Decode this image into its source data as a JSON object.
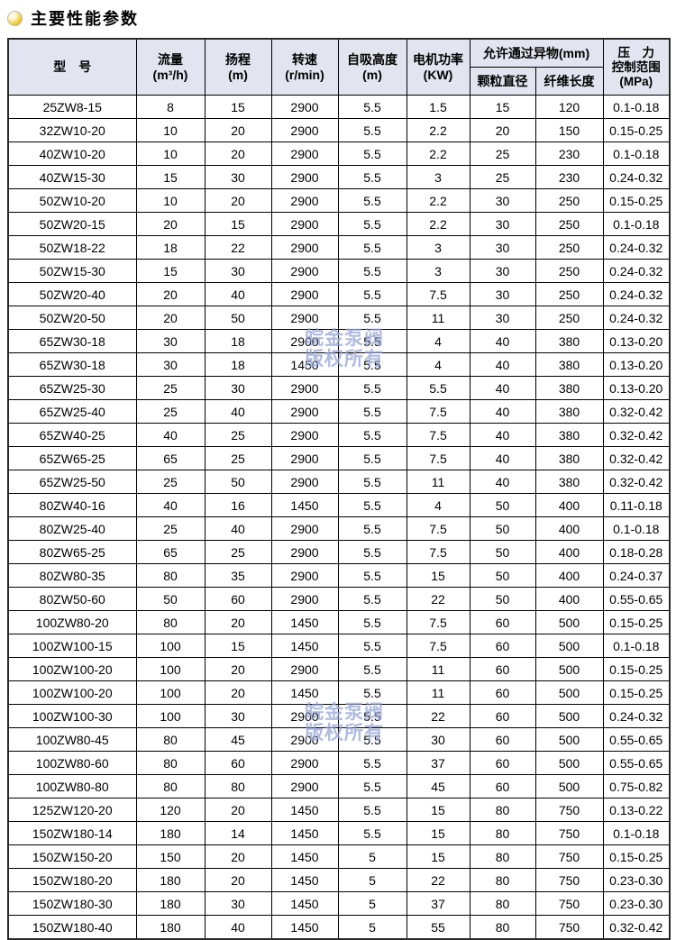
{
  "page": {
    "title": "主要性能参数"
  },
  "watermark": {
    "line1": "皖金泵阀",
    "line2": "版权所有"
  },
  "table": {
    "headers": {
      "model": "型　号",
      "flow": "流量",
      "flow_unit": "(m³/h)",
      "head": "扬程",
      "head_unit": "(m)",
      "speed": "转速",
      "speed_unit": "(r/min)",
      "suction": "自吸高度",
      "suction_unit": "(m)",
      "power": "电机功率",
      "power_unit": "(KW)",
      "foreign": "允许通过异物(mm)",
      "particle": "颗粒直径",
      "fiber": "纤维长度",
      "pressure_l1": "压　力",
      "pressure_l2": "控制范围",
      "pressure_l3": "(MPa)"
    },
    "rows": [
      [
        "25ZW8-15",
        "8",
        "15",
        "2900",
        "5.5",
        "1.5",
        "15",
        "120",
        "0.1-0.18"
      ],
      [
        "32ZW10-20",
        "10",
        "20",
        "2900",
        "5.5",
        "2.2",
        "20",
        "150",
        "0.15-0.25"
      ],
      [
        "40ZW10-20",
        "10",
        "20",
        "2900",
        "5.5",
        "2.2",
        "25",
        "230",
        "0.1-0.18"
      ],
      [
        "40ZW15-30",
        "15",
        "30",
        "2900",
        "5.5",
        "3",
        "25",
        "230",
        "0.24-0.32"
      ],
      [
        "50ZW10-20",
        "10",
        "20",
        "2900",
        "5.5",
        "2.2",
        "30",
        "250",
        "0.15-0.25"
      ],
      [
        "50ZW20-15",
        "20",
        "15",
        "2900",
        "5.5",
        "2.2",
        "30",
        "250",
        "0.1-0.18"
      ],
      [
        "50ZW18-22",
        "18",
        "22",
        "2900",
        "5.5",
        "3",
        "30",
        "250",
        "0.24-0.32"
      ],
      [
        "50ZW15-30",
        "15",
        "30",
        "2900",
        "5.5",
        "3",
        "30",
        "250",
        "0.24-0.32"
      ],
      [
        "50ZW20-40",
        "20",
        "40",
        "2900",
        "5.5",
        "7.5",
        "30",
        "250",
        "0.24-0.32"
      ],
      [
        "50ZW20-50",
        "20",
        "50",
        "2900",
        "5.5",
        "11",
        "30",
        "250",
        "0.24-0.32"
      ],
      [
        "65ZW30-18",
        "30",
        "18",
        "2900",
        "5.5",
        "4",
        "40",
        "380",
        "0.13-0.20"
      ],
      [
        "65ZW30-18",
        "30",
        "18",
        "1450",
        "5.5",
        "4",
        "40",
        "380",
        "0.13-0.20"
      ],
      [
        "65ZW25-30",
        "25",
        "30",
        "2900",
        "5.5",
        "5.5",
        "40",
        "380",
        "0.13-0.20"
      ],
      [
        "65ZW25-40",
        "25",
        "40",
        "2900",
        "5.5",
        "7.5",
        "40",
        "380",
        "0.32-0.42"
      ],
      [
        "65ZW40-25",
        "40",
        "25",
        "2900",
        "5.5",
        "7.5",
        "40",
        "380",
        "0.32-0.42"
      ],
      [
        "65ZW65-25",
        "65",
        "25",
        "2900",
        "5.5",
        "7.5",
        "40",
        "380",
        "0.32-0.42"
      ],
      [
        "65ZW25-50",
        "25",
        "50",
        "2900",
        "5.5",
        "11",
        "40",
        "380",
        "0.32-0.42"
      ],
      [
        "80ZW40-16",
        "40",
        "16",
        "1450",
        "5.5",
        "4",
        "50",
        "400",
        "0.11-0.18"
      ],
      [
        "80ZW25-40",
        "25",
        "40",
        "2900",
        "5.5",
        "7.5",
        "50",
        "400",
        "0.1-0.18"
      ],
      [
        "80ZW65-25",
        "65",
        "25",
        "2900",
        "5.5",
        "7.5",
        "50",
        "400",
        "0.18-0.28"
      ],
      [
        "80ZW80-35",
        "80",
        "35",
        "2900",
        "5.5",
        "15",
        "50",
        "400",
        "0.24-0.37"
      ],
      [
        "80ZW50-60",
        "50",
        "60",
        "2900",
        "5.5",
        "22",
        "50",
        "400",
        "0.55-0.65"
      ],
      [
        "100ZW80-20",
        "80",
        "20",
        "1450",
        "5.5",
        "7.5",
        "60",
        "500",
        "0.15-0.25"
      ],
      [
        "100ZW100-15",
        "100",
        "15",
        "1450",
        "5.5",
        "7.5",
        "60",
        "500",
        "0.1-0.18"
      ],
      [
        "100ZW100-20",
        "100",
        "20",
        "2900",
        "5.5",
        "11",
        "60",
        "500",
        "0.15-0.25"
      ],
      [
        "100ZW100-20",
        "100",
        "20",
        "1450",
        "5.5",
        "11",
        "60",
        "500",
        "0.15-0.25"
      ],
      [
        "100ZW100-30",
        "100",
        "30",
        "2900",
        "5.5",
        "22",
        "60",
        "500",
        "0.24-0.32"
      ],
      [
        "100ZW80-45",
        "80",
        "45",
        "2900",
        "5.5",
        "30",
        "60",
        "500",
        "0.55-0.65"
      ],
      [
        "100ZW80-60",
        "80",
        "60",
        "2900",
        "5.5",
        "37",
        "60",
        "500",
        "0.55-0.65"
      ],
      [
        "100ZW80-80",
        "80",
        "80",
        "2900",
        "5.5",
        "45",
        "60",
        "500",
        "0.75-0.82"
      ],
      [
        "125ZW120-20",
        "120",
        "20",
        "1450",
        "5.5",
        "15",
        "80",
        "750",
        "0.13-0.22"
      ],
      [
        "150ZW180-14",
        "180",
        "14",
        "1450",
        "5.5",
        "15",
        "80",
        "750",
        "0.1-0.18"
      ],
      [
        "150ZW150-20",
        "150",
        "20",
        "1450",
        "5",
        "15",
        "80",
        "750",
        "0.15-0.25"
      ],
      [
        "150ZW180-20",
        "180",
        "20",
        "1450",
        "5",
        "22",
        "80",
        "750",
        "0.23-0.30"
      ],
      [
        "150ZW180-30",
        "180",
        "30",
        "1450",
        "5",
        "37",
        "80",
        "750",
        "0.23-0.30"
      ],
      [
        "150ZW180-40",
        "180",
        "40",
        "1450",
        "5",
        "55",
        "80",
        "750",
        "0.32-0.42"
      ]
    ]
  }
}
